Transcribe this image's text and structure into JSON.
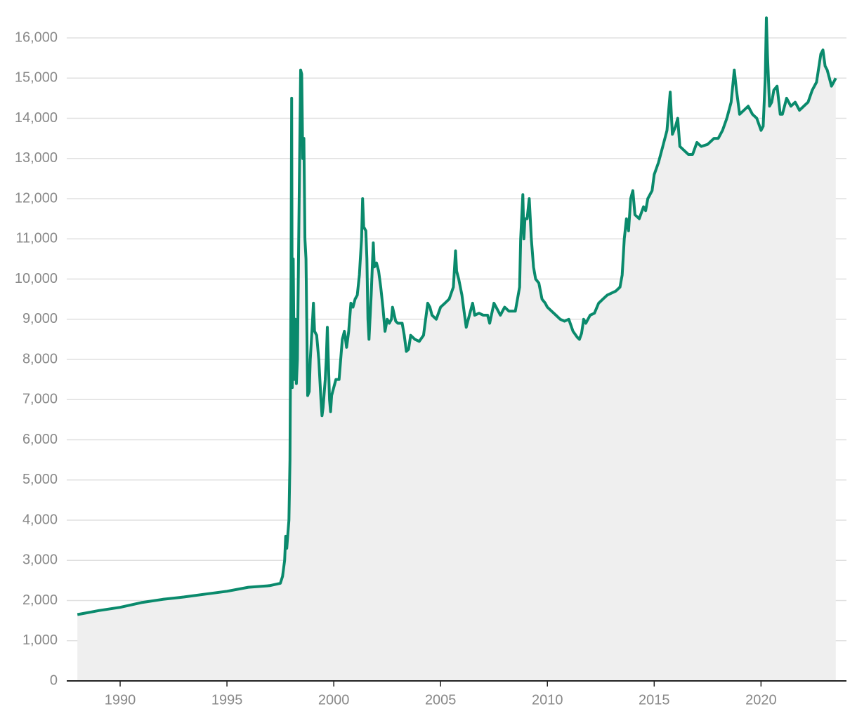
{
  "chart_data": {
    "type": "line",
    "x": [
      1988,
      1989,
      1990,
      1991,
      1992,
      1993,
      1994,
      1995,
      1996,
      1997,
      1997.5,
      1997.6,
      1997.7,
      1997.75,
      1997.8,
      1997.9,
      1997.95,
      1998,
      1998.03,
      1998.06,
      1998.1,
      1998.15,
      1998.2,
      1998.25,
      1998.3,
      1998.38,
      1998.45,
      1998.5,
      1998.55,
      1998.6,
      1998.65,
      1998.7,
      1998.78,
      1998.85,
      1998.9,
      1999,
      1999.05,
      1999.1,
      1999.2,
      1999.3,
      1999.4,
      1999.45,
      1999.5,
      1999.6,
      1999.65,
      1999.7,
      1999.8,
      1999.85,
      1999.9,
      2000,
      2000.1,
      2000.25,
      2000.4,
      2000.5,
      2000.6,
      2000.7,
      2000.8,
      2000.9,
      2001,
      2001.1,
      2001.2,
      2001.3,
      2001.35,
      2001.4,
      2001.5,
      2001.55,
      2001.6,
      2001.65,
      2001.75,
      2001.85,
      2001.9,
      2002,
      2002.1,
      2002.2,
      2002.3,
      2002.4,
      2002.5,
      2002.6,
      2002.7,
      2002.75,
      2002.9,
      2003,
      2003.2,
      2003.3,
      2003.4,
      2003.5,
      2003.6,
      2003.8,
      2004,
      2004.2,
      2004.4,
      2004.5,
      2004.6,
      2004.8,
      2005,
      2005.2,
      2005.4,
      2005.6,
      2005.7,
      2005.75,
      2005.85,
      2006,
      2006.1,
      2006.2,
      2006.3,
      2006.5,
      2006.6,
      2006.8,
      2007,
      2007.2,
      2007.3,
      2007.5,
      2007.6,
      2007.8,
      2008,
      2008.2,
      2008.5,
      2008.7,
      2008.75,
      2008.85,
      2008.9,
      2008.95,
      2009.05,
      2009.15,
      2009.25,
      2009.35,
      2009.45,
      2009.6,
      2009.75,
      2009.9,
      2010,
      2010.2,
      2010.4,
      2010.6,
      2010.8,
      2011,
      2011.2,
      2011.4,
      2011.5,
      2011.6,
      2011.7,
      2011.8,
      2012,
      2012.2,
      2012.4,
      2012.6,
      2012.8,
      2013,
      2013.2,
      2013.4,
      2013.5,
      2013.6,
      2013.7,
      2013.8,
      2013.9,
      2014,
      2014.1,
      2014.3,
      2014.5,
      2014.6,
      2014.7,
      2014.9,
      2015,
      2015.2,
      2015.4,
      2015.6,
      2015.75,
      2015.85,
      2016,
      2016.1,
      2016.2,
      2016.4,
      2016.6,
      2016.8,
      2017,
      2017.2,
      2017.5,
      2017.8,
      2018,
      2018.2,
      2018.4,
      2018.6,
      2018.75,
      2018.85,
      2019,
      2019.2,
      2019.4,
      2019.6,
      2019.8,
      2020,
      2020.1,
      2020.2,
      2020.25,
      2020.3,
      2020.4,
      2020.5,
      2020.6,
      2020.75,
      2020.9,
      2021,
      2021.2,
      2021.4,
      2021.6,
      2021.8,
      2022,
      2022.2,
      2022.4,
      2022.6,
      2022.8,
      2022.9,
      2023,
      2023.1,
      2023.2,
      2023.3,
      2023.4,
      2023.5
    ],
    "values": [
      1650,
      1750,
      1830,
      1950,
      2030,
      2090,
      2160,
      2230,
      2330,
      2370,
      2430,
      2600,
      3000,
      3600,
      3300,
      4000,
      5500,
      10000,
      14500,
      7300,
      10500,
      7500,
      9000,
      7400,
      8000,
      12000,
      15200,
      15100,
      13000,
      13500,
      11000,
      10500,
      7100,
      7200,
      8000,
      8900,
      9400,
      8700,
      8600,
      8000,
      7000,
      6600,
      6800,
      7500,
      8000,
      8800,
      7000,
      6700,
      7100,
      7300,
      7500,
      7500,
      8500,
      8700,
      8300,
      8700,
      9400,
      9300,
      9500,
      9600,
      10100,
      11000,
      12000,
      11300,
      11200,
      10500,
      9000,
      8500,
      9600,
      10900,
      10300,
      10400,
      10200,
      9800,
      9300,
      8700,
      9000,
      8900,
      9000,
      9300,
      8950,
      8900,
      8900,
      8600,
      8200,
      8250,
      8600,
      8500,
      8450,
      8600,
      9400,
      9300,
      9100,
      9000,
      9300,
      9400,
      9500,
      9800,
      10700,
      10200,
      10000,
      9600,
      9200,
      8800,
      9000,
      9400,
      9100,
      9150,
      9100,
      9100,
      8900,
      9400,
      9300,
      9100,
      9300,
      9200,
      9200,
      9800,
      11000,
      12100,
      11000,
      11500,
      11500,
      12000,
      11000,
      10300,
      10000,
      9900,
      9500,
      9400,
      9300,
      9200,
      9100,
      9000,
      8950,
      9000,
      8700,
      8550,
      8500,
      8650,
      9000,
      8900,
      9100,
      9150,
      9400,
      9500,
      9600,
      9650,
      9700,
      9800,
      10100,
      11000,
      11500,
      11200,
      12000,
      12200,
      11600,
      11500,
      11800,
      11700,
      12000,
      12200,
      12600,
      12900,
      13300,
      13700,
      14650,
      13600,
      13800,
      14000,
      13300,
      13200,
      13100,
      13100,
      13400,
      13300,
      13350,
      13500,
      13500,
      13700,
      14000,
      14400,
      15200,
      14700,
      14100,
      14200,
      14300,
      14100,
      14000,
      13700,
      13800,
      15000,
      16500,
      15600,
      14300,
      14400,
      14700,
      14800,
      14100,
      14100,
      14500,
      14300,
      14400,
      14200,
      14300,
      14400,
      14700,
      14900,
      15600,
      15700,
      15300,
      15200,
      15000,
      14800,
      14900,
      15000
    ],
    "color": "#0a8a6c",
    "area_color": "#efefef",
    "grid": true,
    "xlim": [
      1987.5,
      2024
    ],
    "ylim": [
      0,
      16500
    ],
    "xticks": [
      1990,
      1995,
      2000,
      2005,
      2010,
      2015,
      2020
    ],
    "yticks": [
      0,
      {
        "value": 1000,
        "label": "1,000"
      },
      {
        "value": 2000,
        "label": "2,000"
      },
      {
        "value": 3000,
        "label": "3,000"
      },
      {
        "value": 4000,
        "label": "4,000"
      },
      {
        "value": 5000,
        "label": "5,000"
      },
      {
        "value": 6000,
        "label": "6,000"
      },
      {
        "value": 7000,
        "label": "7,000"
      },
      {
        "value": 8000,
        "label": "8,000"
      },
      {
        "value": 9000,
        "label": "9,000"
      },
      {
        "value": 10000,
        "label": "10,000"
      },
      {
        "value": 11000,
        "label": "11,000"
      },
      {
        "value": 12000,
        "label": "12,000"
      },
      {
        "value": 13000,
        "label": "13,000"
      },
      {
        "value": 14000,
        "label": "14,000"
      },
      {
        "value": 15000,
        "label": "15,000"
      },
      {
        "value": 16000,
        "label": "16,000"
      }
    ]
  }
}
